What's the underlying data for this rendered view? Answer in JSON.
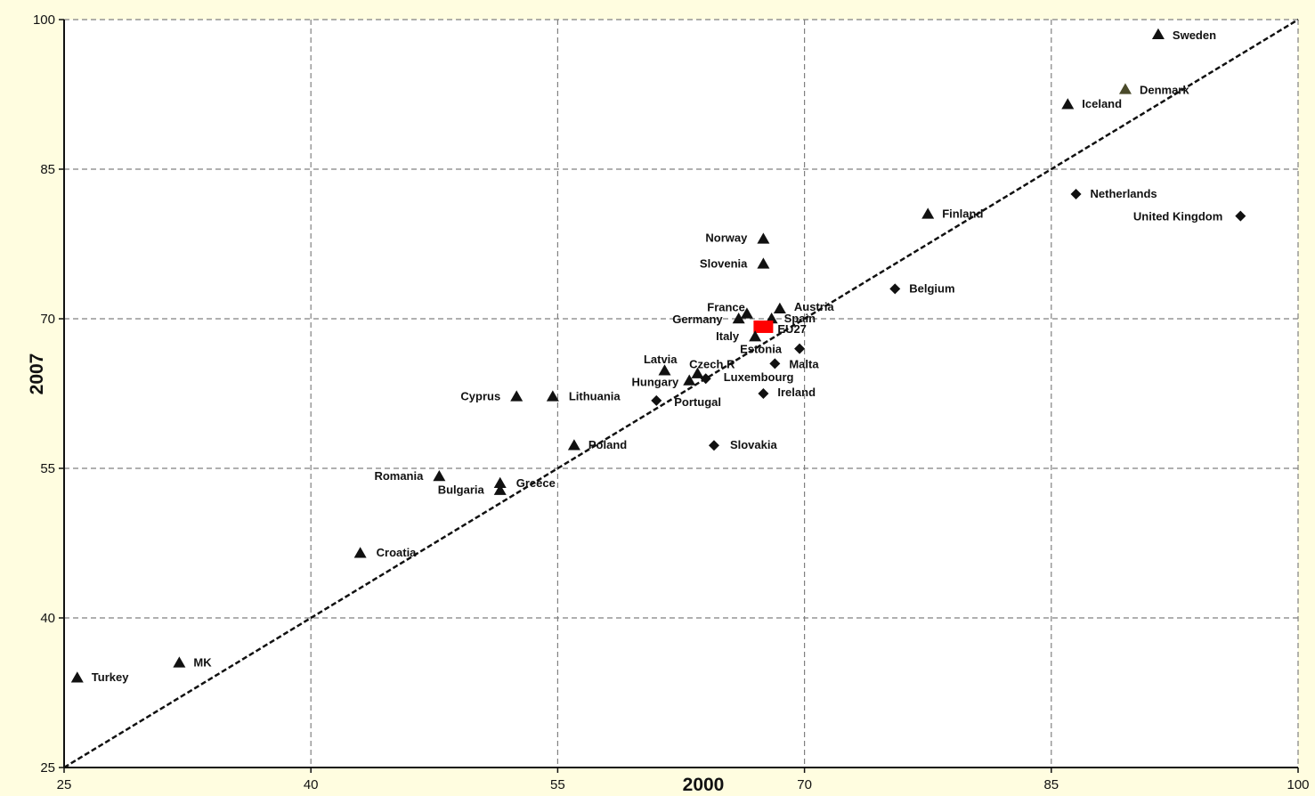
{
  "chart_data": {
    "type": "scatter",
    "title": "",
    "xlabel": "2000",
    "ylabel": "2007",
    "xlim": [
      25,
      100
    ],
    "ylim": [
      25,
      100
    ],
    "xticks": [
      25,
      40,
      55,
      70,
      85,
      100
    ],
    "yticks": [
      25,
      40,
      55,
      70,
      85,
      100
    ],
    "grid": true,
    "reference_line": "y = x",
    "colors": {
      "points": "#111111",
      "highlight": "#ff0000",
      "grid": "#808080",
      "denmark": "#4a4a2a"
    },
    "points": [
      {
        "label": "Sweden",
        "x": 91.5,
        "y": 98.5,
        "marker": "triangle"
      },
      {
        "label": "Denmark",
        "x": 89.5,
        "y": 93.0,
        "marker": "triangle"
      },
      {
        "label": "Iceland",
        "x": 86.0,
        "y": 91.5,
        "marker": "triangle"
      },
      {
        "label": "Netherlands",
        "x": 86.5,
        "y": 82.5,
        "marker": "diamond"
      },
      {
        "label": "United Kingdom",
        "x": 96.5,
        "y": 80.3,
        "marker": "diamond"
      },
      {
        "label": "Finland",
        "x": 77.5,
        "y": 80.5,
        "marker": "triangle"
      },
      {
        "label": "Norway",
        "x": 67.5,
        "y": 78.0,
        "marker": "triangle"
      },
      {
        "label": "Slovenia",
        "x": 67.5,
        "y": 75.5,
        "marker": "triangle"
      },
      {
        "label": "Belgium",
        "x": 75.5,
        "y": 73.0,
        "marker": "diamond"
      },
      {
        "label": "Austria",
        "x": 68.5,
        "y": 71.0,
        "marker": "triangle"
      },
      {
        "label": "France",
        "x": 66.5,
        "y": 70.5,
        "marker": "triangle"
      },
      {
        "label": "Spain",
        "x": 68.0,
        "y": 70.0,
        "marker": "triangle"
      },
      {
        "label": "Germany",
        "x": 66.0,
        "y": 70.0,
        "marker": "triangle"
      },
      {
        "label": "EU27",
        "x": 67.5,
        "y": 69.2,
        "marker": "square",
        "highlight": true
      },
      {
        "label": "Italy",
        "x": 67.0,
        "y": 68.2,
        "marker": "triangle"
      },
      {
        "label": "Estonia",
        "x": 69.7,
        "y": 67.0,
        "marker": "diamond"
      },
      {
        "label": "Malta",
        "x": 68.2,
        "y": 65.5,
        "marker": "diamond"
      },
      {
        "label": "Latvia",
        "x": 61.5,
        "y": 64.8,
        "marker": "triangle"
      },
      {
        "label": "Czech R",
        "x": 63.5,
        "y": 64.5,
        "marker": "triangle"
      },
      {
        "label": "Luxembourg",
        "x": 64.0,
        "y": 64.0,
        "marker": "diamond"
      },
      {
        "label": "Hungary",
        "x": 63.0,
        "y": 63.8,
        "marker": "triangle"
      },
      {
        "label": "Ireland",
        "x": 67.5,
        "y": 62.5,
        "marker": "diamond"
      },
      {
        "label": "Cyprus",
        "x": 52.5,
        "y": 62.2,
        "marker": "triangle"
      },
      {
        "label": "Lithuania",
        "x": 54.7,
        "y": 62.2,
        "marker": "triangle"
      },
      {
        "label": "Portugal",
        "x": 61.0,
        "y": 61.8,
        "marker": "diamond"
      },
      {
        "label": "Poland",
        "x": 56.0,
        "y": 57.3,
        "marker": "triangle"
      },
      {
        "label": "Slovakia",
        "x": 64.5,
        "y": 57.3,
        "marker": "diamond"
      },
      {
        "label": "Romania",
        "x": 47.8,
        "y": 54.2,
        "marker": "triangle"
      },
      {
        "label": "Greece",
        "x": 51.5,
        "y": 53.5,
        "marker": "triangle"
      },
      {
        "label": "Bulgaria",
        "x": 51.5,
        "y": 52.8,
        "marker": "triangle"
      },
      {
        "label": "Croatia",
        "x": 43.0,
        "y": 46.5,
        "marker": "triangle"
      },
      {
        "label": "MK",
        "x": 32.0,
        "y": 35.5,
        "marker": "triangle"
      },
      {
        "label": "Turkey",
        "x": 25.8,
        "y": 34.0,
        "marker": "triangle"
      }
    ]
  }
}
